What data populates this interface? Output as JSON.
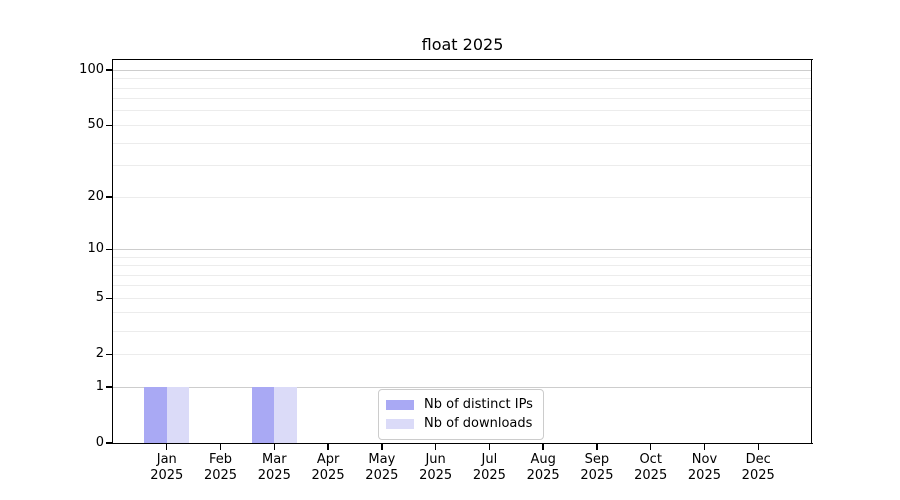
{
  "chart_data": {
    "type": "bar",
    "title": "float 2025",
    "categories": [
      "Jan",
      "Feb",
      "Mar",
      "Apr",
      "May",
      "Jun",
      "Jul",
      "Aug",
      "Sep",
      "Oct",
      "Nov",
      "Dec"
    ],
    "category_year": "2025",
    "series": [
      {
        "name": "Nb of distinct IPs",
        "color": "#a9a9f4",
        "values": [
          1,
          0,
          1,
          0,
          0,
          0,
          0,
          0,
          0,
          0,
          0,
          0
        ]
      },
      {
        "name": "Nb of downloads",
        "color": "#dbdbf8",
        "values": [
          1,
          0,
          1,
          0,
          0,
          0,
          0,
          0,
          0,
          0,
          0,
          0
        ]
      }
    ],
    "y_axis": {
      "scale": "log1p",
      "tick_values": [
        0,
        1,
        2,
        5,
        10,
        20,
        50,
        100
      ],
      "tick_labels": [
        "0",
        "1",
        "2",
        "5",
        "10",
        "20",
        "50",
        "100"
      ],
      "major_gridlines": [
        1,
        10,
        100
      ],
      "minor_gridlines": [
        2,
        3,
        4,
        5,
        6,
        7,
        8,
        9,
        20,
        30,
        40,
        50,
        60,
        70,
        80,
        90
      ],
      "ylim": [
        0,
        115
      ]
    },
    "legend": {
      "entries": [
        "Nb of distinct IPs",
        "Nb of downloads"
      ],
      "position": "lower center"
    },
    "colors": {
      "major_grid": "#cdcdcd",
      "minor_grid": "#ececec",
      "axis": "#000000",
      "legend_border": "#cccccc",
      "background": "#ffffff",
      "text": "#000000"
    }
  }
}
